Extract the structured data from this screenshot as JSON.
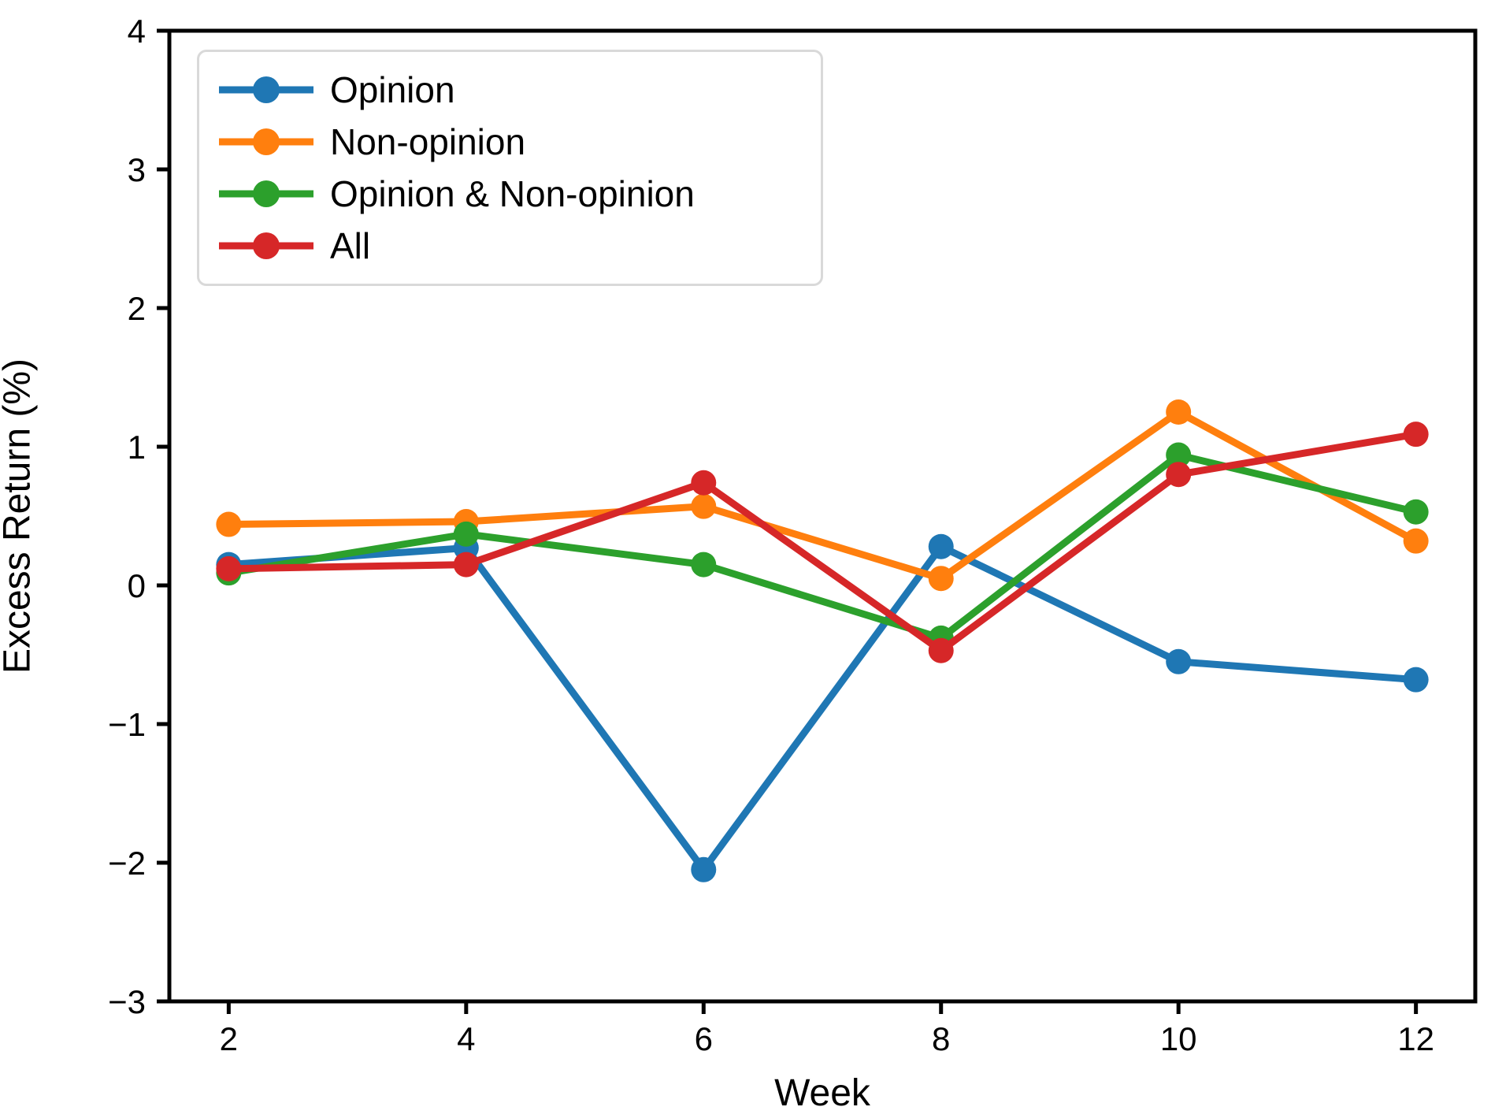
{
  "chart_data": {
    "type": "line",
    "x": [
      2,
      4,
      6,
      8,
      10,
      12
    ],
    "series": [
      {
        "name": "Opinion",
        "color": "#1f77b4",
        "values": [
          0.15,
          0.27,
          -2.05,
          0.28,
          -0.55,
          -0.68
        ]
      },
      {
        "name": "Non-opinion",
        "color": "#ff7f0e",
        "values": [
          0.44,
          0.46,
          0.57,
          0.05,
          1.25,
          0.32
        ]
      },
      {
        "name": "Opinion & Non-opinion",
        "color": "#2ca02c",
        "values": [
          0.09,
          0.37,
          0.15,
          -0.38,
          0.94,
          0.53
        ]
      },
      {
        "name": "All",
        "color": "#d62728",
        "values": [
          0.12,
          0.15,
          0.74,
          -0.47,
          0.8,
          1.09
        ]
      }
    ],
    "title": "",
    "xlabel": "Week",
    "ylabel": "Excess Return (%)",
    "xlim": [
      1.5,
      12.5
    ],
    "ylim": [
      -3,
      4
    ],
    "xticks": [
      2,
      4,
      6,
      8,
      10,
      12
    ],
    "yticks": [
      -3,
      -2,
      -1,
      0,
      1,
      2,
      3,
      4
    ],
    "grid": false,
    "legend_position": "upper-left",
    "axis_color": "#000000",
    "background_color": "#ffffff"
  }
}
